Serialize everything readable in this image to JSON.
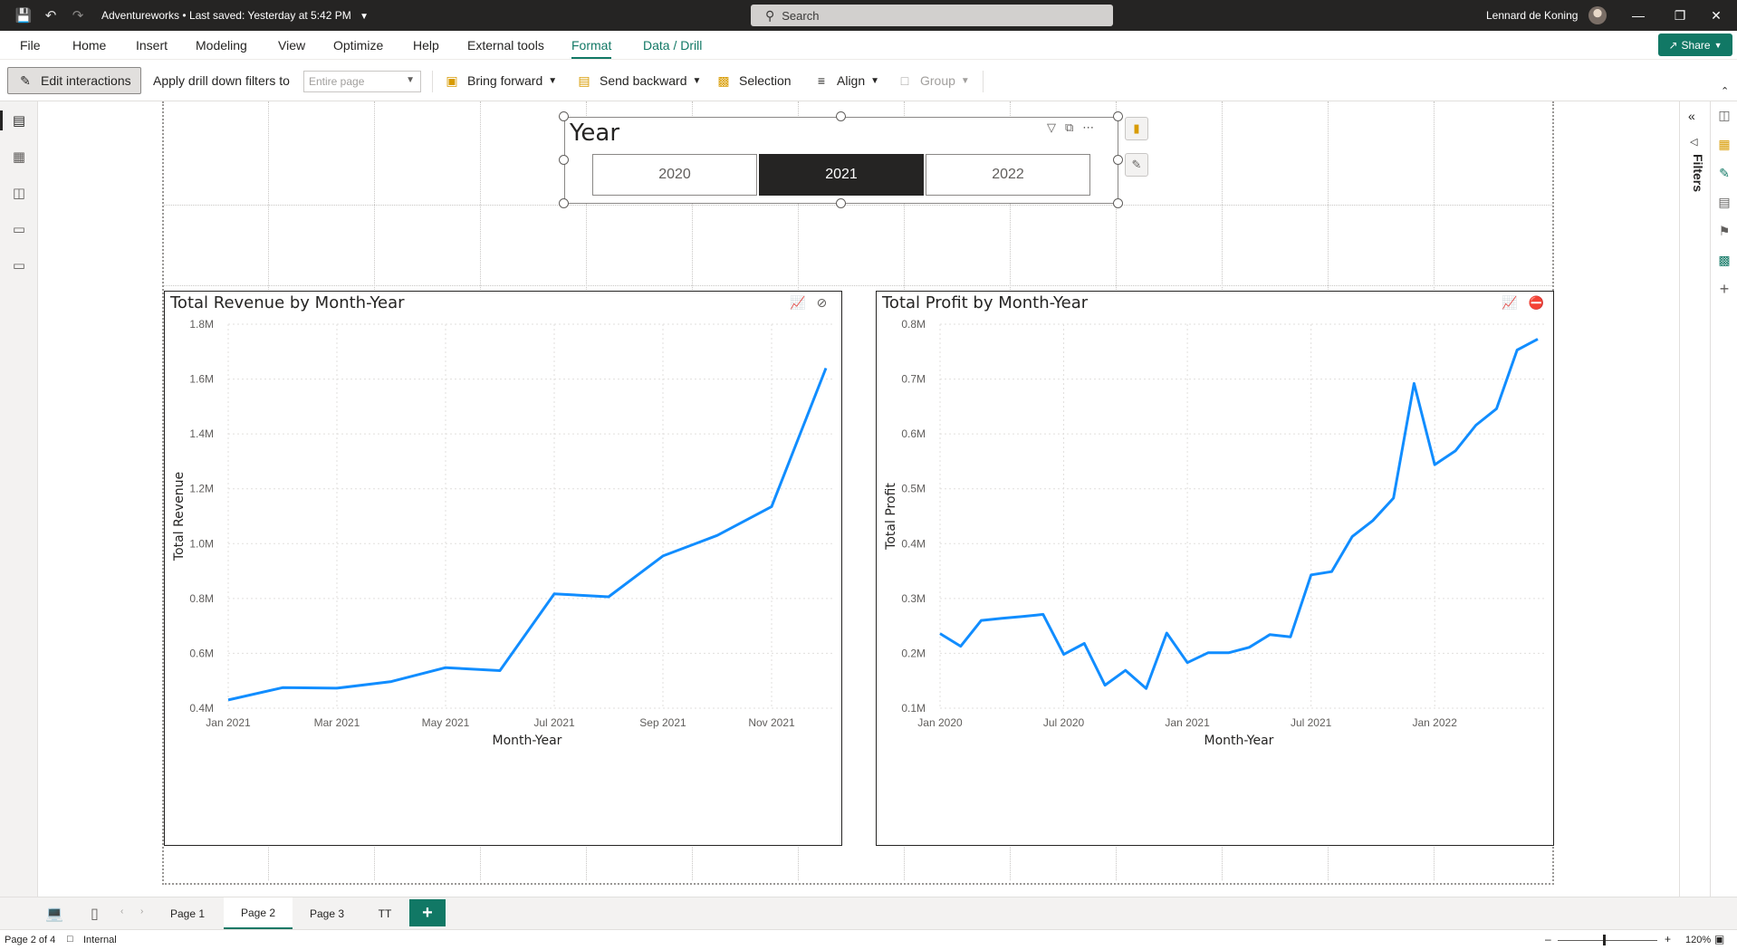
{
  "titlebar": {
    "file_name": "Adventureworks",
    "save_status": "Last saved: Yesterday at 5:42 PM",
    "search_placeholder": "Search",
    "user_name": "Lennard de Koning"
  },
  "menu": {
    "items": [
      "File",
      "Home",
      "Insert",
      "Modeling",
      "View",
      "Optimize",
      "Help",
      "External tools",
      "Format",
      "Data / Drill"
    ],
    "active": "Format",
    "share_label": "Share"
  },
  "toolbar": {
    "edit_interactions": "Edit interactions",
    "apply_drill_label": "Apply drill down filters to",
    "apply_drill_value": "Entire page",
    "bring_forward": "Bring forward",
    "send_backward": "Send backward",
    "selection": "Selection",
    "align": "Align",
    "group": "Group"
  },
  "slicer": {
    "title": "Year",
    "options": [
      "2020",
      "2021",
      "2022"
    ],
    "selected": "2021"
  },
  "filters_pane": {
    "label": "Filters"
  },
  "pages": {
    "tabs": [
      "Page 1",
      "Page 2",
      "Page 3",
      "TT"
    ],
    "active": "Page 2",
    "add_label": "+"
  },
  "status": {
    "page_indicator": "Page 2 of 4",
    "sensitivity": "Internal",
    "zoom": "120%"
  },
  "chart_data": [
    {
      "type": "line",
      "title": "Total Revenue by Month-Year",
      "xlabel": "Month-Year",
      "ylabel": "Total Revenue",
      "x": [
        "Jan 2021",
        "Feb 2021",
        "Mar 2021",
        "Apr 2021",
        "May 2021",
        "Jun 2021",
        "Jul 2021",
        "Aug 2021",
        "Sep 2021",
        "Oct 2021",
        "Nov 2021",
        "Dec 2021"
      ],
      "x_tick_labels": [
        "Jan 2021",
        "Mar 2021",
        "May 2021",
        "Jul 2021",
        "Sep 2021",
        "Nov 2021"
      ],
      "y_tick_labels": [
        "0.4M",
        "0.6M",
        "0.8M",
        "1.0M",
        "1.2M",
        "1.4M",
        "1.6M",
        "1.8M"
      ],
      "values": [
        0.43,
        0.475,
        0.473,
        0.497,
        0.548,
        0.537,
        0.817,
        0.806,
        0.955,
        1.03,
        1.135,
        1.64
      ],
      "ylim": [
        0.4,
        1.8
      ],
      "unit": "M",
      "color": "#118DFF",
      "grid": true
    },
    {
      "type": "line",
      "title": "Total Profit by Month-Year",
      "xlabel": "Month-Year",
      "ylabel": "Total Profit",
      "x": [
        "Jan 2020",
        "Feb 2020",
        "Mar 2020",
        "Apr 2020",
        "May 2020",
        "Jun 2020",
        "Jul 2020",
        "Aug 2020",
        "Sep 2020",
        "Oct 2020",
        "Nov 2020",
        "Dec 2020",
        "Jan 2021",
        "Feb 2021",
        "Mar 2021",
        "Apr 2021",
        "May 2021",
        "Jun 2021",
        "Jul 2021",
        "Aug 2021",
        "Sep 2021",
        "Oct 2021",
        "Nov 2021",
        "Dec 2021",
        "Jan 2022",
        "Feb 2022",
        "Mar 2022",
        "Apr 2022",
        "May 2022",
        "Jun 2022"
      ],
      "x_tick_labels": [
        "Jan 2020",
        "Jul 2020",
        "Jan 2021",
        "Jul 2021",
        "Jan 2022"
      ],
      "y_tick_labels": [
        "0.1M",
        "0.2M",
        "0.3M",
        "0.4M",
        "0.5M",
        "0.6M",
        "0.7M",
        "0.8M"
      ],
      "values": [
        0.236,
        0.213,
        0.26,
        0.264,
        0.267,
        0.271,
        0.198,
        0.218,
        0.142,
        0.169,
        0.136,
        0.237,
        0.183,
        0.201,
        0.201,
        0.211,
        0.234,
        0.23,
        0.343,
        0.349,
        0.413,
        0.442,
        0.483,
        0.692,
        0.544,
        0.569,
        0.616,
        0.646,
        0.753,
        0.773
      ],
      "ylim": [
        0.1,
        0.8
      ],
      "unit": "M",
      "color": "#118DFF",
      "grid": true
    }
  ]
}
